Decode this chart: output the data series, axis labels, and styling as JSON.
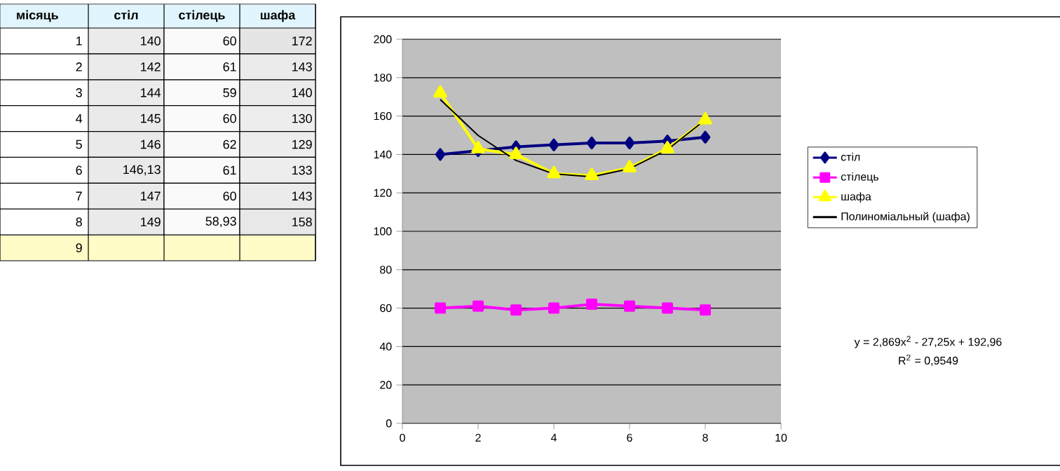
{
  "chart_data": [
    {
      "type": "heatmap",
      "ylabel": "місяць",
      "categories": [
        "стіл",
        "стілець",
        "шафа"
      ],
      "y_categories": [
        "1",
        "2",
        "3",
        "4",
        "5",
        "6",
        "7",
        "8",
        "9"
      ],
      "cells": [
        [
          140,
          60,
          172
        ],
        [
          142,
          61,
          143
        ],
        [
          144,
          59,
          140
        ],
        [
          145,
          60,
          130
        ],
        [
          146,
          62,
          129
        ],
        [
          146.13,
          61,
          133
        ],
        [
          147,
          60,
          143
        ],
        [
          149,
          58.93,
          158
        ],
        [
          null,
          null,
          null
        ]
      ],
      "cell_labels": [
        [
          "140",
          "60",
          "172"
        ],
        [
          "142",
          "61",
          "143"
        ],
        [
          "144",
          "59",
          "140"
        ],
        [
          "145",
          "60",
          "130"
        ],
        [
          "146",
          "62",
          "129"
        ],
        [
          "146,13",
          "61",
          "133"
        ],
        [
          "147",
          "60",
          "143"
        ],
        [
          "149",
          "58,93",
          "158"
        ],
        [
          null,
          null,
          null
        ]
      ]
    },
    {
      "type": "line",
      "x": [
        1,
        2,
        3,
        4,
        5,
        6,
        7,
        8
      ],
      "series": [
        {
          "name": "стіл",
          "color": "#000080",
          "marker": "diamond",
          "values": [
            140,
            142,
            144,
            145,
            146,
            146,
            147,
            149
          ]
        },
        {
          "name": "стілець",
          "color": "#ff00ff",
          "marker": "square",
          "values": [
            60,
            61,
            59,
            60,
            62,
            61,
            60,
            59
          ]
        },
        {
          "name": "шафа",
          "color": "#ffff00",
          "marker": "triangle",
          "values": [
            172,
            143,
            140,
            130,
            129,
            133,
            143,
            158
          ]
        },
        {
          "name": "Полиноміальный (шафа)",
          "type": "line",
          "color": "#000000",
          "marker": "none",
          "x": [
            1,
            2,
            3,
            4,
            5,
            6,
            7,
            8
          ],
          "values": [
            168.6,
            149.9,
            136.9,
            129.9,
            128.4,
            132.6,
            142.5,
            158.0
          ]
        }
      ],
      "xlim": [
        0,
        10
      ],
      "xticks": [
        0,
        2,
        4,
        6,
        8,
        10
      ],
      "ylim": [
        0,
        200
      ],
      "yticks": [
        0,
        20,
        40,
        60,
        80,
        100,
        120,
        140,
        160,
        180,
        200
      ],
      "grid": "y",
      "legend": "right",
      "annotations": [
        "y = 2,869x$^{2}$ - 27,25x + 192,96",
        "R$^{2}$ = 0,9549"
      ]
    }
  ]
}
